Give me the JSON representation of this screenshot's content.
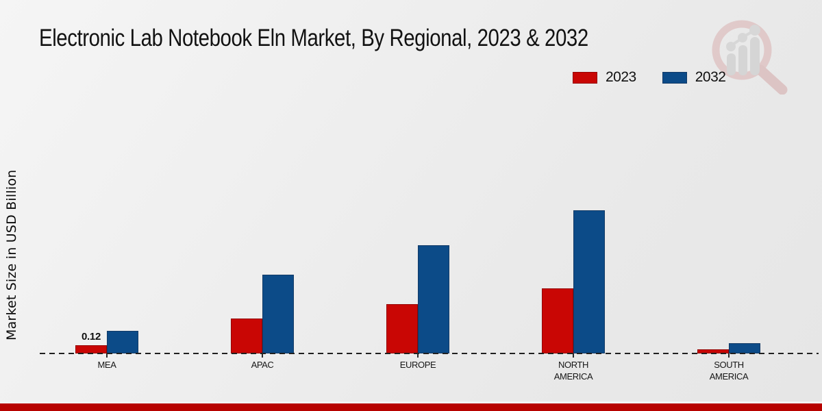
{
  "title": "Electronic Lab Notebook Eln Market, By Regional, 2023 & 2032",
  "watermark_icon": "magnifier-bar-chart-logo",
  "chart_data": {
    "type": "bar",
    "title": "Electronic Lab Notebook Eln Market, By Regional, 2023 & 2032",
    "ylabel": "Market Size in USD Billion",
    "xlabel": "",
    "categories": [
      "MEA",
      "APAC",
      "EUROPE",
      "NORTH\nAMERICA",
      "SOUTH\nAMERICA"
    ],
    "series": [
      {
        "name": "2023",
        "color": "#c90604",
        "edge": "#940301",
        "values": [
          0.12,
          0.51,
          0.72,
          0.95,
          0.06
        ]
      },
      {
        "name": "2032",
        "color": "#0c4b88",
        "edge": "#123a66",
        "values": [
          0.33,
          1.15,
          1.58,
          2.09,
          0.15
        ]
      }
    ],
    "annotations": [
      {
        "category_index": 0,
        "series_index": 0,
        "text": "0.12"
      }
    ],
    "ylim": [
      0,
      2.3
    ],
    "grid": false,
    "baseline_style": "dashed",
    "legend_position": "top-right",
    "y_tick_labels_visible": false
  },
  "footer": {
    "color": "#b70200"
  }
}
